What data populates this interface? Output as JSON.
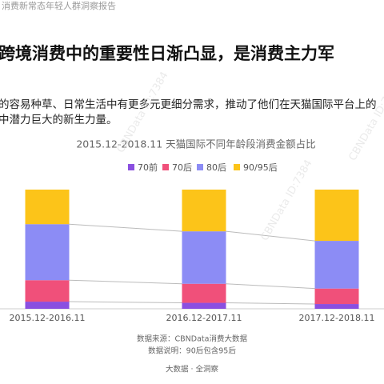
{
  "header": {
    "report": "消费新常态年轻人群洞察报告",
    "heading": "跨境消费中的重要性日渐凸显，是消费主力军",
    "paragraph": [
      "的容易种草、日常生活中有更多元更细分需求，推动了他们在天猫国际平台上的",
      "中潜力巨大的新生力量。"
    ]
  },
  "chart_data": {
    "type": "stacked_bar",
    "title": "2015.12-2018.11 天猫国际不同年龄段消费金额占比",
    "categories": [
      "2015.12-2016.11",
      "2016.12-2017.11",
      "2017.12-2018.11"
    ],
    "ylim": [
      0,
      100
    ],
    "series": [
      {
        "name": "70前",
        "color": "#8a4fe0",
        "values": [
          6,
          5,
          4
        ]
      },
      {
        "name": "70后",
        "color": "#f0507a",
        "values": [
          18,
          16,
          13
        ]
      },
      {
        "name": "80后",
        "color": "#8c8cf5",
        "values": [
          47,
          44,
          40
        ]
      },
      {
        "name": "90/95后",
        "color": "#fcc419",
        "values": [
          29,
          35,
          43
        ]
      }
    ]
  },
  "footer": {
    "source": "数据来源：CBNData消费大数据",
    "note": "数据说明：90后包含95后",
    "slogan": "大数据 · 全洞察"
  },
  "watermarks": [
    "CBNData ID:7384",
    "CBNData ID:7384",
    "CBNData ID:7384"
  ]
}
